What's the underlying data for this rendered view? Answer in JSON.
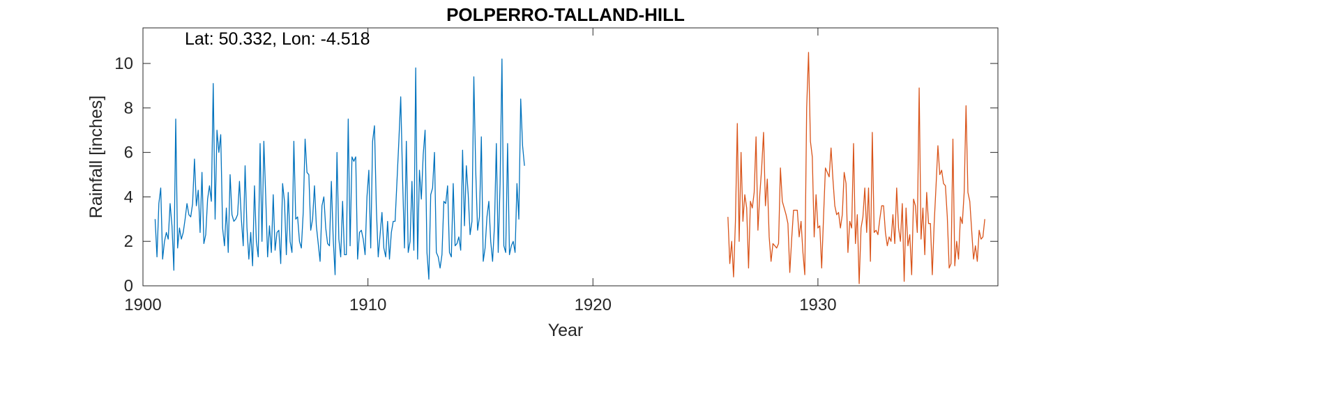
{
  "chart_data": {
    "type": "line",
    "title": "POLPERRO-TALLAND-HILL",
    "annotation": "Lat: 50.332, Lon: -4.518",
    "xlabel": "Year",
    "ylabel": "Rainfall [inches]",
    "xlim": [
      1900,
      1938
    ],
    "ylim": [
      0,
      11.6
    ],
    "xticks": [
      1900,
      1910,
      1920,
      1930
    ],
    "yticks": [
      0,
      2,
      4,
      6,
      8,
      10
    ],
    "grid": false,
    "legend": "none",
    "series": [
      {
        "color": "#0072BD",
        "x_start": 1900.54,
        "x_step": 0.0833333,
        "values": [
          3.0,
          1.3,
          3.7,
          4.4,
          1.2,
          2.0,
          2.4,
          2.1,
          3.7,
          2.7,
          0.7,
          7.5,
          1.7,
          2.6,
          2.1,
          2.4,
          3.0,
          3.7,
          3.2,
          3.1,
          3.7,
          5.7,
          3.6,
          4.3,
          2.4,
          5.1,
          1.9,
          2.3,
          3.9,
          4.5,
          3.8,
          9.1,
          3.0,
          7.0,
          6.0,
          6.8,
          2.6,
          1.8,
          3.5,
          1.5,
          5.0,
          3.2,
          2.9,
          3.0,
          3.2,
          4.7,
          3.0,
          1.8,
          5.4,
          2.6,
          1.2,
          2.4,
          0.9,
          4.5,
          2.0,
          1.3,
          6.4,
          2.0,
          6.5,
          4.0,
          1.3,
          2.7,
          1.5,
          4.1,
          1.6,
          2.4,
          2.5,
          1.0,
          4.6,
          3.8,
          1.4,
          4.2,
          2.0,
          1.5,
          6.5,
          3.0,
          3.1,
          2.0,
          1.7,
          3.3,
          6.6,
          5.1,
          5.0,
          2.5,
          3.0,
          4.5,
          2.7,
          1.9,
          1.1,
          3.6,
          4.0,
          2.6,
          1.9,
          1.8,
          4.7,
          2.1,
          0.5,
          6.0,
          2.1,
          1.3,
          3.8,
          1.4,
          1.4,
          7.5,
          1.8,
          5.8,
          5.6,
          5.8,
          1.2,
          2.4,
          2.5,
          2.1,
          1.4,
          4.0,
          5.2,
          1.7,
          6.5,
          7.2,
          3.5,
          1.3,
          2.3,
          3.3,
          1.7,
          1.3,
          2.9,
          1.2,
          2.4,
          2.9,
          2.9,
          4.7,
          6.5,
          8.5,
          4.8,
          1.7,
          6.5,
          1.5,
          2.0,
          4.7,
          1.6,
          9.8,
          1.2,
          5.2,
          3.9,
          5.9,
          7.0,
          1.5,
          0.3,
          4.1,
          4.4,
          6.0,
          1.5,
          1.3,
          0.8,
          1.4,
          3.8,
          3.7,
          4.5,
          1.5,
          1.3,
          4.6,
          1.8,
          1.9,
          2.2,
          1.6,
          6.1,
          2.7,
          5.4,
          4.1,
          2.3,
          2.9,
          9.4,
          5.2,
          2.5,
          3.1,
          6.7,
          1.1,
          1.7,
          3.1,
          3.8,
          2.0,
          1.1,
          2.7,
          6.4,
          1.5,
          4.6,
          10.2,
          1.8,
          1.5,
          6.4,
          1.4,
          1.8,
          2.0,
          1.5,
          4.6,
          3.0,
          8.4,
          6.3,
          5.4
        ]
      },
      {
        "color": "#D95319",
        "x_start": 1926.0,
        "x_step": 0.0833333,
        "values": [
          3.1,
          1.0,
          2.0,
          0.4,
          2.9,
          7.3,
          2.0,
          6.0,
          2.9,
          4.1,
          3.5,
          0.8,
          3.8,
          3.5,
          4.2,
          6.7,
          2.5,
          4.1,
          5.3,
          6.9,
          3.6,
          4.8,
          2.2,
          1.1,
          1.9,
          1.8,
          1.7,
          1.9,
          5.3,
          3.8,
          3.5,
          3.2,
          2.8,
          0.6,
          2.1,
          3.4,
          3.4,
          3.4,
          2.2,
          2.9,
          1.5,
          0.5,
          8.0,
          10.5,
          6.5,
          5.8,
          2.2,
          4.1,
          2.6,
          2.7,
          0.8,
          3.1,
          5.3,
          5.1,
          4.9,
          6.2,
          4.8,
          3.6,
          3.2,
          3.3,
          2.6,
          3.2,
          5.1,
          4.6,
          1.5,
          2.9,
          2.6,
          6.4,
          1.9,
          3.2,
          0.1,
          2.6,
          3.1,
          4.4,
          2.4,
          4.4,
          1.1,
          6.9,
          2.4,
          2.5,
          2.3,
          3.0,
          3.6,
          3.6,
          2.4,
          1.8,
          2.2,
          2.0,
          3.2,
          1.9,
          4.4,
          2.6,
          2.0,
          3.7,
          0.2,
          3.5,
          1.8,
          2.3,
          0.5,
          3.9,
          3.6,
          2.4,
          8.9,
          2.1,
          3.5,
          1.4,
          4.2,
          2.8,
          2.8,
          0.5,
          2.8,
          4.5,
          6.3,
          5.0,
          5.2,
          4.6,
          4.5,
          3.1,
          0.8,
          1.0,
          6.6,
          0.9,
          2.0,
          1.2,
          3.1,
          2.8,
          4.2,
          8.1,
          4.2,
          3.8,
          2.5,
          1.2,
          1.8,
          1.1,
          2.5,
          2.1,
          2.2,
          3.0
        ]
      }
    ]
  }
}
